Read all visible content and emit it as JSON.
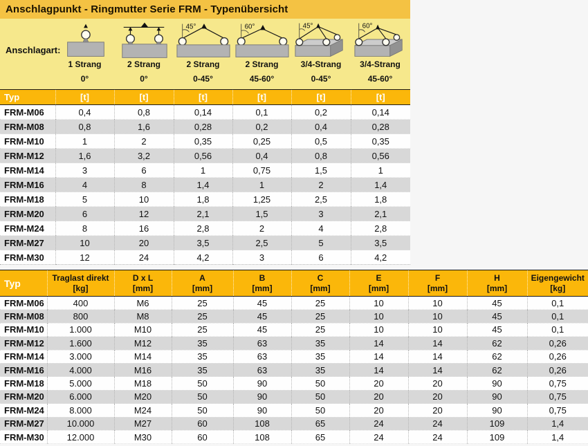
{
  "page": {
    "title": "Anschlagpunkt - Ringmutter Serie FRM - Typenübersicht"
  },
  "colors": {
    "title_bar_bg": "#f4c243",
    "section_bg": "#f6e88c",
    "table_header_bg": "#fbb70a",
    "row_stripe": "#d8d8d8",
    "header_text_white": "#ffffff",
    "text_dark": "#111111"
  },
  "anschlagart": {
    "label": "Anschlagart:",
    "items": [
      {
        "name": "1 Strang",
        "angle": "0°",
        "diagram_angle": ""
      },
      {
        "name": "2 Strang",
        "angle": "0°",
        "diagram_angle": ""
      },
      {
        "name": "2 Strang",
        "angle": "0-45°",
        "diagram_angle": "45°"
      },
      {
        "name": "2 Strang",
        "angle": "45-60°",
        "diagram_angle": "60°"
      },
      {
        "name": "3/4-Strang",
        "angle": "0-45°",
        "diagram_angle": "45°"
      },
      {
        "name": "3/4-Strang",
        "angle": "45-60°",
        "diagram_angle": "60°"
      }
    ]
  },
  "capacity_table": {
    "typ_header": "Typ",
    "unit_header": "[t]",
    "rows": [
      {
        "typ": "FRM-M06",
        "values": [
          "0,4",
          "0,8",
          "0,14",
          "0,1",
          "0,2",
          "0,14"
        ]
      },
      {
        "typ": "FRM-M08",
        "values": [
          "0,8",
          "1,6",
          "0,28",
          "0,2",
          "0,4",
          "0,28"
        ]
      },
      {
        "typ": "FRM-M10",
        "values": [
          "1",
          "2",
          "0,35",
          "0,25",
          "0,5",
          "0,35"
        ]
      },
      {
        "typ": "FRM-M12",
        "values": [
          "1,6",
          "3,2",
          "0,56",
          "0,4",
          "0,8",
          "0,56"
        ]
      },
      {
        "typ": "FRM-M14",
        "values": [
          "3",
          "6",
          "1",
          "0,75",
          "1,5",
          "1"
        ]
      },
      {
        "typ": "FRM-M16",
        "values": [
          "4",
          "8",
          "1,4",
          "1",
          "2",
          "1,4"
        ]
      },
      {
        "typ": "FRM-M18",
        "values": [
          "5",
          "10",
          "1,8",
          "1,25",
          "2,5",
          "1,8"
        ]
      },
      {
        "typ": "FRM-M20",
        "values": [
          "6",
          "12",
          "2,1",
          "1,5",
          "3",
          "2,1"
        ]
      },
      {
        "typ": "FRM-M24",
        "values": [
          "8",
          "16",
          "2,8",
          "2",
          "4",
          "2,8"
        ]
      },
      {
        "typ": "FRM-M27",
        "values": [
          "10",
          "20",
          "3,5",
          "2,5",
          "5",
          "3,5"
        ]
      },
      {
        "typ": "FRM-M30",
        "values": [
          "12",
          "24",
          "4,2",
          "3",
          "6",
          "4,2"
        ]
      }
    ]
  },
  "dimensions_table": {
    "columns": [
      {
        "label": "Typ",
        "unit": ""
      },
      {
        "label": "Traglast direkt",
        "unit": "[kg]"
      },
      {
        "label": "D x L",
        "unit": "[mm]"
      },
      {
        "label": "A",
        "unit": "[mm]"
      },
      {
        "label": "B",
        "unit": "[mm]"
      },
      {
        "label": "C",
        "unit": "[mm]"
      },
      {
        "label": "E",
        "unit": "[mm]"
      },
      {
        "label": "F",
        "unit": "[mm]"
      },
      {
        "label": "H",
        "unit": "[mm]"
      },
      {
        "label": "Eigengewicht",
        "unit": "[kg]"
      }
    ],
    "rows": [
      {
        "typ": "FRM-M06",
        "values": [
          "400",
          "M6",
          "25",
          "45",
          "25",
          "10",
          "10",
          "45",
          "0,1"
        ]
      },
      {
        "typ": "FRM-M08",
        "values": [
          "800",
          "M8",
          "25",
          "45",
          "25",
          "10",
          "10",
          "45",
          "0,1"
        ]
      },
      {
        "typ": "FRM-M10",
        "values": [
          "1.000",
          "M10",
          "25",
          "45",
          "25",
          "10",
          "10",
          "45",
          "0,1"
        ]
      },
      {
        "typ": "FRM-M12",
        "values": [
          "1.600",
          "M12",
          "35",
          "63",
          "35",
          "14",
          "14",
          "62",
          "0,26"
        ]
      },
      {
        "typ": "FRM-M14",
        "values": [
          "3.000",
          "M14",
          "35",
          "63",
          "35",
          "14",
          "14",
          "62",
          "0,26"
        ]
      },
      {
        "typ": "FRM-M16",
        "values": [
          "4.000",
          "M16",
          "35",
          "63",
          "35",
          "14",
          "14",
          "62",
          "0,26"
        ]
      },
      {
        "typ": "FRM-M18",
        "values": [
          "5.000",
          "M18",
          "50",
          "90",
          "50",
          "20",
          "20",
          "90",
          "0,75"
        ]
      },
      {
        "typ": "FRM-M20",
        "values": [
          "6.000",
          "M20",
          "50",
          "90",
          "50",
          "20",
          "20",
          "90",
          "0,75"
        ]
      },
      {
        "typ": "FRM-M24",
        "values": [
          "8.000",
          "M24",
          "50",
          "90",
          "50",
          "20",
          "20",
          "90",
          "0,75"
        ]
      },
      {
        "typ": "FRM-M27",
        "values": [
          "10.000",
          "M27",
          "60",
          "108",
          "65",
          "24",
          "24",
          "109",
          "1,4"
        ]
      },
      {
        "typ": "FRM-M30",
        "values": [
          "12.000",
          "M30",
          "60",
          "108",
          "65",
          "24",
          "24",
          "109",
          "1,4"
        ]
      }
    ]
  }
}
